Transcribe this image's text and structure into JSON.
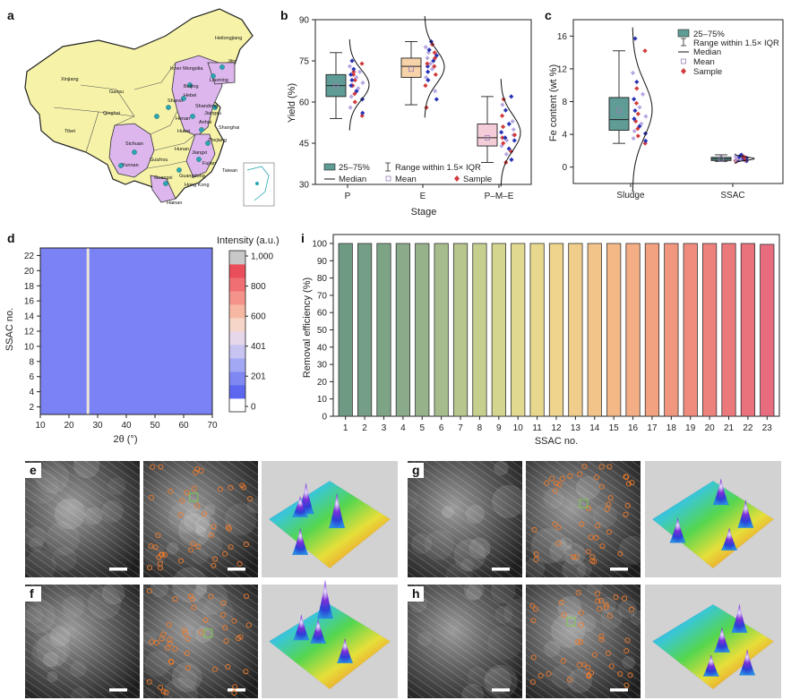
{
  "panels": {
    "a": {
      "label": "a",
      "provinces": [
        "Heilongjiang",
        "Jilin",
        "Liaoning",
        "Inner Mongolia",
        "Beijing",
        "Hebei",
        "Shanxi",
        "Shandong",
        "Henan",
        "Xinjiang",
        "Gansu",
        "Qinghai",
        "Tibet",
        "Sichuan",
        "Yunnan",
        "Hubei",
        "Anhui",
        "Jiangsu",
        "Shanghai",
        "Zhejiang",
        "Hunan",
        "Jiangxi",
        "Fujian",
        "Guizhou",
        "Guangxi",
        "Guangdong",
        "Hong Kong",
        "Hainan",
        "Taiwan"
      ]
    },
    "b": {
      "label": "b",
      "chart_data": {
        "type": "box",
        "categories": [
          "P",
          "E",
          "P–M–E"
        ],
        "xlabel": "Stage",
        "ylabel": "Yield (%)",
        "ylim": [
          30,
          90
        ],
        "yticks": [
          30,
          45,
          60,
          75,
          90
        ],
        "colors": [
          "#5f9c95",
          "#f6d3a8",
          "#f4cdd8"
        ],
        "boxes": [
          {
            "q1": 62,
            "median": 66,
            "q3": 70,
            "whisker_low": 54,
            "whisker_high": 78,
            "mean": 66
          },
          {
            "q1": 69,
            "median": 73,
            "q3": 76,
            "whisker_low": 59,
            "whisker_high": 82,
            "mean": 72
          },
          {
            "q1": 44,
            "median": 47,
            "q3": 52,
            "whisker_low": 38,
            "whisker_high": 62,
            "mean": 47
          }
        ],
        "samples": [
          [
            55,
            56,
            58,
            60,
            61,
            62,
            63,
            64,
            65,
            66,
            66,
            67,
            68,
            68,
            69,
            70,
            70,
            71,
            71,
            72,
            73,
            74,
            75
          ],
          [
            58,
            61,
            64,
            66,
            68,
            69,
            70,
            71,
            72,
            73,
            73,
            74,
            74,
            75,
            76,
            76,
            77,
            78,
            78,
            79,
            80,
            81,
            82
          ],
          [
            38,
            39,
            41,
            42,
            43,
            44,
            45,
            46,
            46,
            47,
            47,
            48,
            48,
            49,
            50,
            51,
            52,
            53,
            55,
            57,
            59,
            61,
            62
          ]
        ]
      },
      "legend": {
        "box": "25–75%",
        "median": "Median",
        "range": "Range within 1.5× IQR",
        "mean": "Mean",
        "sample": "Sample"
      }
    },
    "c": {
      "label": "c",
      "chart_data": {
        "type": "box",
        "categories": [
          "Sludge",
          "SSAC"
        ],
        "ylabel": "Fe content (wt %)",
        "ylim": [
          -2,
          18
        ],
        "yticks": [
          0,
          4,
          8,
          12,
          16
        ],
        "colors": [
          "#5f9c95",
          "#5f9c95"
        ],
        "boxes": [
          {
            "q1": 4.5,
            "median": 5.8,
            "q3": 8.5,
            "whisker_low": 2.9,
            "whisker_high": 14.2,
            "mean": 6.9
          },
          {
            "q1": 0.8,
            "median": 1.0,
            "q3": 1.2,
            "whisker_low": 0.7,
            "whisker_high": 1.5,
            "mean": 1.0
          }
        ],
        "samples": [
          [
            2.9,
            3.2,
            3.5,
            3.8,
            4.1,
            4.4,
            4.7,
            5.0,
            5.3,
            5.6,
            5.9,
            6.2,
            6.5,
            6.9,
            7.3,
            7.8,
            8.3,
            8.9,
            9.6,
            10.4,
            11.5,
            14.2,
            15.7
          ],
          [
            0.7,
            0.75,
            0.8,
            0.82,
            0.85,
            0.88,
            0.9,
            0.92,
            0.95,
            0.97,
            1.0,
            1.0,
            1.02,
            1.05,
            1.08,
            1.1,
            1.12,
            1.15,
            1.2,
            1.25,
            1.3,
            1.4,
            1.5
          ]
        ]
      },
      "legend": {
        "box": "25–75%",
        "range": "Range within 1.5× IQR",
        "median": "Median",
        "mean": "Mean",
        "sample": "Sample"
      }
    },
    "d": {
      "label": "d",
      "chart_data": {
        "type": "heatmap",
        "xlabel": "2θ (°)",
        "ylabel": "SSAC no.",
        "xlim": [
          10,
          70
        ],
        "xticks": [
          10,
          20,
          30,
          40,
          50,
          60,
          70
        ],
        "ylim": [
          1,
          23
        ],
        "yticks": [
          2,
          4,
          6,
          8,
          10,
          12,
          14,
          16,
          18,
          20,
          22
        ],
        "peak_2theta": 26.6,
        "colorbar_title": "Intensity (a.u.)",
        "colorbar_ticks": [
          "0",
          "201",
          "401",
          "600",
          "800",
          "1,000"
        ],
        "colorbar_values": [
          0,
          201,
          401,
          600,
          800,
          1000
        ]
      }
    },
    "i": {
      "label": "i",
      "chart_data": {
        "type": "bar",
        "categories": [
          "1",
          "2",
          "3",
          "4",
          "5",
          "6",
          "7",
          "8",
          "9",
          "10",
          "11",
          "12",
          "13",
          "14",
          "15",
          "16",
          "17",
          "18",
          "19",
          "20",
          "21",
          "22",
          "23"
        ],
        "values": [
          100,
          100,
          100,
          100,
          100,
          100,
          100,
          100,
          100,
          100,
          100,
          100,
          100,
          100,
          100,
          100,
          100,
          100,
          100,
          100,
          100,
          100,
          99.5
        ],
        "xlabel": "SSAC no.",
        "ylabel": "Removal efficiency (%)",
        "ylim": [
          0,
          100
        ],
        "yticks": [
          0,
          10,
          20,
          30,
          40,
          50,
          60,
          70,
          80,
          90,
          100
        ],
        "colors": [
          "#6e9a84",
          "#749e85",
          "#7ea486",
          "#8aab89",
          "#96b28b",
          "#a6bc8c",
          "#b6c68d",
          "#c6cf8e",
          "#d4d58f",
          "#e0d98f",
          "#e8d88e",
          "#eed48d",
          "#f1cd8b",
          "#f3c489",
          "#f4b887",
          "#f4ad84",
          "#f3a281",
          "#f1977f",
          "#ef8c7d",
          "#ed827c",
          "#eb797c",
          "#e9727d",
          "#e66c7e"
        ]
      }
    },
    "e": {
      "label": "e"
    },
    "f": {
      "label": "f"
    },
    "g": {
      "label": "g"
    },
    "h": {
      "label": "h"
    }
  }
}
